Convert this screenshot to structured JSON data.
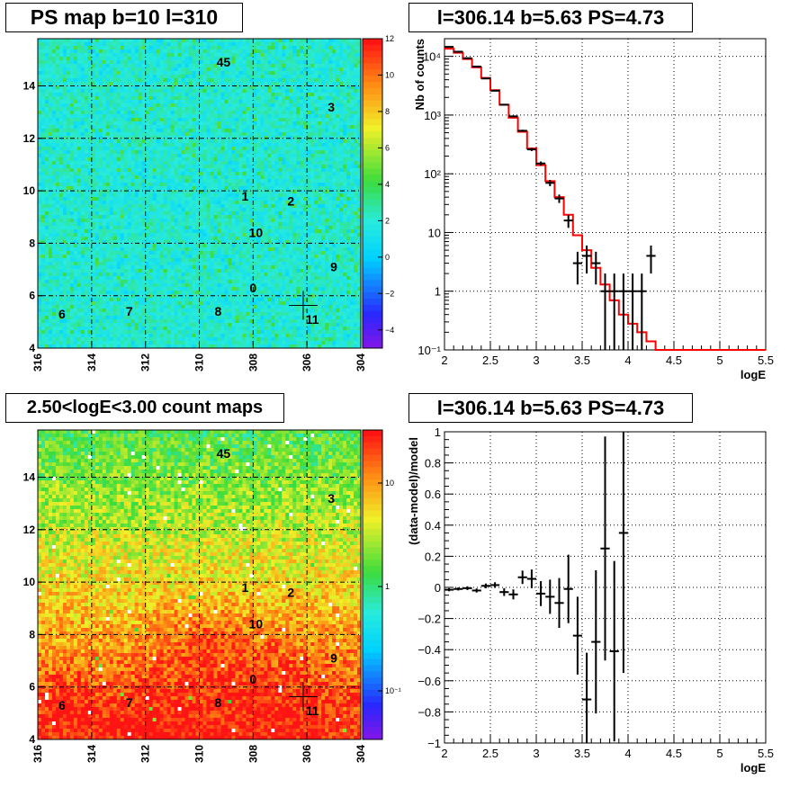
{
  "chart_data": [
    {
      "type": "heatmap",
      "title": "PS map b=10 l=310",
      "x_ticks": [
        "316",
        "314",
        "312",
        "310",
        "308",
        "306",
        "304"
      ],
      "y_ticks": [
        "4",
        "6",
        "8",
        "10",
        "12",
        "14"
      ],
      "xlim": [
        316,
        304
      ],
      "ylim": [
        4,
        15.8
      ],
      "colorbar_ticks": [
        "12",
        "10",
        "8",
        "6",
        "4",
        "2",
        "0",
        "−2",
        "−4"
      ],
      "colorbar_range": [
        -5,
        12
      ],
      "grid": true,
      "colors": {
        "background_map": "#30e8f0",
        "palette": "rainbow"
      },
      "sources": [
        {
          "label": "45",
          "l": 309.1,
          "b": 14.9
        },
        {
          "label": "3",
          "l": 305.1,
          "b": 13.2
        },
        {
          "label": "1",
          "l": 308.3,
          "b": 9.8
        },
        {
          "label": "2",
          "l": 306.6,
          "b": 9.6
        },
        {
          "label": "10",
          "l": 307.9,
          "b": 8.4
        },
        {
          "label": "9",
          "l": 305.0,
          "b": 7.1
        },
        {
          "label": "0",
          "l": 308.0,
          "b": 6.3
        },
        {
          "label": "6",
          "l": 315.1,
          "b": 5.3
        },
        {
          "label": "7",
          "l": 312.6,
          "b": 5.4
        },
        {
          "label": "8",
          "l": 309.3,
          "b": 5.4
        },
        {
          "label": "11",
          "l": 305.8,
          "b": 5.1
        }
      ],
      "cross": {
        "l": 306.14,
        "b": 5.63
      }
    },
    {
      "type": "line",
      "title": "l=306.14 b=5.63 PS=4.73",
      "xlabel": "logE",
      "ylabel": "Nb of counts",
      "xlim": [
        2,
        5.5
      ],
      "ylim": [
        0.1,
        20000
      ],
      "log_y": true,
      "grid": true,
      "x_ticks": [
        "2",
        "2.5",
        "3",
        "3.5",
        "4",
        "4.5",
        "5",
        "5.5"
      ],
      "y_ticks": [
        "10⁻¹",
        "1",
        "10",
        "10²",
        "10³",
        "10⁴"
      ],
      "bin_width": 0.1,
      "data": {
        "x": [
          2.05,
          2.15,
          2.25,
          2.35,
          2.45,
          2.55,
          2.65,
          2.75,
          2.85,
          2.95,
          3.05,
          3.15,
          3.25,
          3.35,
          3.45,
          3.55,
          3.65,
          3.75,
          3.85,
          3.95,
          4.05,
          4.15,
          4.25
        ],
        "y": [
          14500,
          12000,
          9300,
          6700,
          4200,
          2600,
          1500,
          950,
          540,
          260,
          150,
          70,
          38,
          16,
          3,
          4,
          3,
          1,
          1,
          1,
          1,
          1,
          4
        ],
        "err_lo": [
          120,
          110,
          96,
          82,
          65,
          51,
          39,
          31,
          23,
          16,
          12,
          8.4,
          6.2,
          4,
          1.7,
          2,
          1.7,
          0.99,
          0.99,
          0.99,
          0.99,
          0.99,
          2
        ],
        "err_hi": [
          120,
          110,
          96,
          82,
          65,
          51,
          39,
          31,
          23,
          16,
          12,
          8.4,
          6.2,
          4,
          1.7,
          2,
          1.7,
          1,
          1,
          1,
          1,
          1,
          2
        ]
      },
      "model": {
        "edges": [
          2.0,
          2.1,
          2.2,
          2.3,
          2.4,
          2.5,
          2.6,
          2.7,
          2.8,
          2.9,
          3.0,
          3.1,
          3.2,
          3.3,
          3.4,
          3.5,
          3.6,
          3.7,
          3.8,
          3.9,
          4.0,
          4.1,
          4.2,
          4.3,
          4.4,
          4.5,
          4.6,
          4.7,
          4.8,
          4.9,
          5.0,
          5.1,
          5.2,
          5.3,
          5.4,
          5.5
        ],
        "values": [
          13500,
          11500,
          9000,
          6500,
          4300,
          2650,
          1500,
          900,
          520,
          270,
          140,
          75,
          40,
          20,
          9,
          5,
          2.5,
          1.3,
          0.7,
          0.4,
          0.28,
          0.2,
          0.14,
          0.1,
          0.1,
          0.1,
          0.1,
          0.1,
          0.1,
          0.1,
          0.1,
          0.1,
          0.1,
          0.1,
          0.1
        ]
      },
      "colors": {
        "data": "#000000",
        "model": "#ff0000"
      }
    },
    {
      "type": "heatmap",
      "title": "2.50<logE<3.00 count maps",
      "x_ticks": [
        "316",
        "314",
        "312",
        "310",
        "308",
        "306",
        "304"
      ],
      "y_ticks": [
        "4",
        "6",
        "8",
        "10",
        "12",
        "14"
      ],
      "xlim": [
        316,
        304
      ],
      "ylim": [
        4,
        15.8
      ],
      "colorbar_ticks": [
        "10",
        "1",
        "10⁻¹"
      ],
      "log_colorbar": true,
      "grid": true,
      "colors": {
        "palette": "rainbow"
      },
      "sources": [
        {
          "label": "45",
          "l": 309.1,
          "b": 14.9
        },
        {
          "label": "3",
          "l": 305.1,
          "b": 13.2
        },
        {
          "label": "1",
          "l": 308.3,
          "b": 9.8
        },
        {
          "label": "2",
          "l": 306.6,
          "b": 9.6
        },
        {
          "label": "10",
          "l": 307.9,
          "b": 8.4
        },
        {
          "label": "9",
          "l": 305.0,
          "b": 7.1
        },
        {
          "label": "0",
          "l": 308.0,
          "b": 6.3
        },
        {
          "label": "6",
          "l": 315.1,
          "b": 5.3
        },
        {
          "label": "7",
          "l": 312.6,
          "b": 5.4
        },
        {
          "label": "8",
          "l": 309.3,
          "b": 5.4
        },
        {
          "label": "11",
          "l": 305.8,
          "b": 5.1
        }
      ],
      "cross": {
        "l": 306.14,
        "b": 5.63
      }
    },
    {
      "type": "scatter",
      "title": "l=306.14 b=5.63 PS=4.73",
      "xlabel": "logE",
      "ylabel": "(data-model)/model",
      "xlim": [
        2,
        5.5
      ],
      "ylim": [
        -1,
        1
      ],
      "grid": true,
      "x_ticks": [
        "2",
        "2.5",
        "3",
        "3.5",
        "4",
        "4.5",
        "5",
        "5.5"
      ],
      "y_ticks": [
        "−1",
        "−0.8",
        "−0.6",
        "−0.4",
        "−0.2",
        "0",
        "0.2",
        "0.4",
        "0.6",
        "0.8",
        "1"
      ],
      "bin_width": 0.1,
      "data": {
        "x": [
          2.05,
          2.15,
          2.25,
          2.35,
          2.45,
          2.55,
          2.65,
          2.75,
          2.85,
          2.95,
          3.05,
          3.15,
          3.25,
          3.35,
          3.45,
          3.55,
          3.65,
          3.75,
          3.85,
          3.95
        ],
        "y": [
          -0.015,
          -0.01,
          -0.005,
          -0.02,
          0.01,
          0.015,
          -0.03,
          -0.045,
          0.065,
          0.055,
          -0.04,
          -0.06,
          -0.1,
          -0.01,
          -0.31,
          -0.72,
          -0.35,
          0.25,
          -0.41,
          0.35
        ],
        "err": [
          0.01,
          0.01,
          0.012,
          0.013,
          0.015,
          0.018,
          0.025,
          0.032,
          0.043,
          0.06,
          0.08,
          0.11,
          0.16,
          0.22,
          0.25,
          0.3,
          0.46,
          0.72,
          0.58,
          0.9
        ]
      },
      "colors": {
        "data": "#000000"
      }
    }
  ]
}
